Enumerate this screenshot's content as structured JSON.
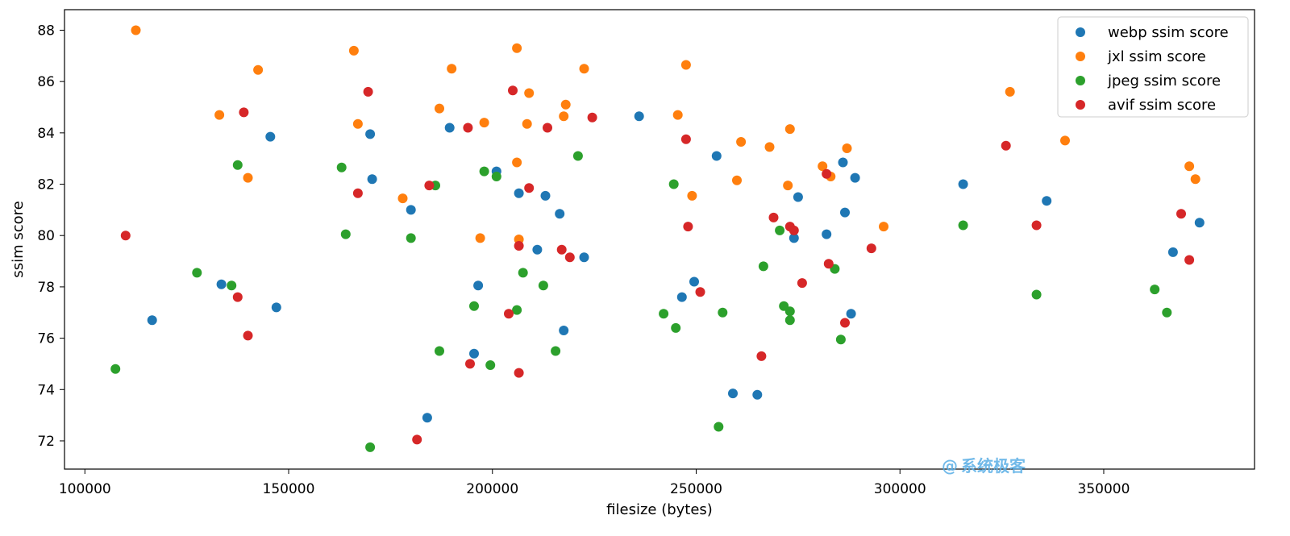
{
  "chart_data": {
    "type": "scatter",
    "xlabel": "filesize (bytes)",
    "ylabel": "ssim score",
    "xlim": [
      95000,
      387000
    ],
    "ylim": [
      70.9,
      88.8
    ],
    "xticks": [
      100000,
      150000,
      200000,
      250000,
      300000,
      350000
    ],
    "yticks": [
      72,
      74,
      76,
      78,
      80,
      82,
      84,
      86,
      88
    ],
    "legend_position": "top-right",
    "series": [
      {
        "name": "webp ssim score",
        "color": "#1f77b4",
        "points": [
          [
            116500,
            76.7
          ],
          [
            133500,
            78.1
          ],
          [
            145500,
            83.85
          ],
          [
            147000,
            77.2
          ],
          [
            170000,
            83.95
          ],
          [
            170500,
            82.2
          ],
          [
            180000,
            81.0
          ],
          [
            184000,
            72.9
          ],
          [
            189500,
            84.2
          ],
          [
            195500,
            75.4
          ],
          [
            196500,
            78.05
          ],
          [
            201000,
            82.5
          ],
          [
            206500,
            81.65
          ],
          [
            211000,
            79.45
          ],
          [
            213000,
            81.55
          ],
          [
            216500,
            80.85
          ],
          [
            217500,
            76.3
          ],
          [
            222500,
            79.15
          ],
          [
            236000,
            84.65
          ],
          [
            246500,
            77.6
          ],
          [
            249500,
            78.2
          ],
          [
            255000,
            83.1
          ],
          [
            259000,
            73.85
          ],
          [
            265000,
            73.8
          ],
          [
            274000,
            79.9
          ],
          [
            275000,
            81.5
          ],
          [
            282000,
            80.05
          ],
          [
            286000,
            82.85
          ],
          [
            286500,
            80.9
          ],
          [
            288000,
            76.95
          ],
          [
            289000,
            82.25
          ],
          [
            315500,
            82.0
          ],
          [
            336000,
            81.35
          ],
          [
            367000,
            79.35
          ],
          [
            373500,
            80.5
          ]
        ]
      },
      {
        "name": "jxl ssim score",
        "color": "#ff7f0e",
        "points": [
          [
            112500,
            88.0
          ],
          [
            133000,
            84.7
          ],
          [
            140000,
            82.25
          ],
          [
            142500,
            86.45
          ],
          [
            166000,
            87.2
          ],
          [
            167000,
            84.35
          ],
          [
            178000,
            81.45
          ],
          [
            187000,
            84.95
          ],
          [
            190000,
            86.5
          ],
          [
            197000,
            79.9
          ],
          [
            198000,
            84.4
          ],
          [
            206000,
            82.85
          ],
          [
            206000,
            87.3
          ],
          [
            206500,
            79.85
          ],
          [
            208500,
            84.35
          ],
          [
            209000,
            85.55
          ],
          [
            217500,
            84.65
          ],
          [
            218000,
            85.1
          ],
          [
            222500,
            86.5
          ],
          [
            245500,
            84.7
          ],
          [
            247500,
            86.65
          ],
          [
            249000,
            81.55
          ],
          [
            260000,
            82.15
          ],
          [
            261000,
            83.65
          ],
          [
            268000,
            83.45
          ],
          [
            272500,
            81.95
          ],
          [
            273000,
            84.15
          ],
          [
            281000,
            82.7
          ],
          [
            283000,
            82.3
          ],
          [
            287000,
            83.4
          ],
          [
            296000,
            80.35
          ],
          [
            327000,
            85.6
          ],
          [
            340500,
            83.7
          ],
          [
            371000,
            82.7
          ],
          [
            372500,
            82.2
          ]
        ]
      },
      {
        "name": "jpeg ssim score",
        "color": "#2ca02c",
        "points": [
          [
            107500,
            74.8
          ],
          [
            127500,
            78.55
          ],
          [
            136000,
            78.05
          ],
          [
            137500,
            82.75
          ],
          [
            163000,
            82.65
          ],
          [
            164000,
            80.05
          ],
          [
            170000,
            71.75
          ],
          [
            180000,
            79.9
          ],
          [
            186000,
            81.95
          ],
          [
            187000,
            75.5
          ],
          [
            195500,
            77.25
          ],
          [
            198000,
            82.5
          ],
          [
            199500,
            74.95
          ],
          [
            201000,
            82.3
          ],
          [
            206000,
            77.1
          ],
          [
            207500,
            78.55
          ],
          [
            212500,
            78.05
          ],
          [
            215500,
            75.5
          ],
          [
            221000,
            83.1
          ],
          [
            242000,
            76.95
          ],
          [
            244500,
            82.0
          ],
          [
            245000,
            76.4
          ],
          [
            255500,
            72.55
          ],
          [
            256500,
            77.0
          ],
          [
            266500,
            78.8
          ],
          [
            270500,
            80.2
          ],
          [
            271500,
            77.25
          ],
          [
            273000,
            77.05
          ],
          [
            273000,
            76.7
          ],
          [
            284000,
            78.7
          ],
          [
            285500,
            75.95
          ],
          [
            315500,
            80.4
          ],
          [
            333500,
            77.7
          ],
          [
            362500,
            77.9
          ],
          [
            365500,
            77.0
          ]
        ]
      },
      {
        "name": "avif ssim score",
        "color": "#d62728",
        "points": [
          [
            110000,
            80.0
          ],
          [
            137500,
            77.6
          ],
          [
            139000,
            84.8
          ],
          [
            140000,
            76.1
          ],
          [
            167000,
            81.65
          ],
          [
            169500,
            85.6
          ],
          [
            181500,
            72.05
          ],
          [
            184500,
            81.95
          ],
          [
            194000,
            84.2
          ],
          [
            194500,
            75.0
          ],
          [
            204000,
            76.95
          ],
          [
            205000,
            85.65
          ],
          [
            206500,
            79.6
          ],
          [
            206500,
            74.65
          ],
          [
            209000,
            81.85
          ],
          [
            213500,
            84.2
          ],
          [
            217000,
            79.45
          ],
          [
            219000,
            79.15
          ],
          [
            224500,
            84.6
          ],
          [
            247500,
            83.75
          ],
          [
            248000,
            80.35
          ],
          [
            251000,
            77.8
          ],
          [
            266000,
            75.3
          ],
          [
            269000,
            80.7
          ],
          [
            273000,
            80.35
          ],
          [
            274000,
            80.2
          ],
          [
            276000,
            78.15
          ],
          [
            282000,
            82.4
          ],
          [
            282500,
            78.9
          ],
          [
            286500,
            76.6
          ],
          [
            293000,
            79.5
          ],
          [
            326000,
            83.5
          ],
          [
            333500,
            80.4
          ],
          [
            369000,
            80.85
          ],
          [
            371000,
            79.05
          ]
        ]
      }
    ]
  },
  "watermark": {
    "text": "系统极客",
    "icon": "at-sign-icon",
    "color": "#5aaee6"
  }
}
